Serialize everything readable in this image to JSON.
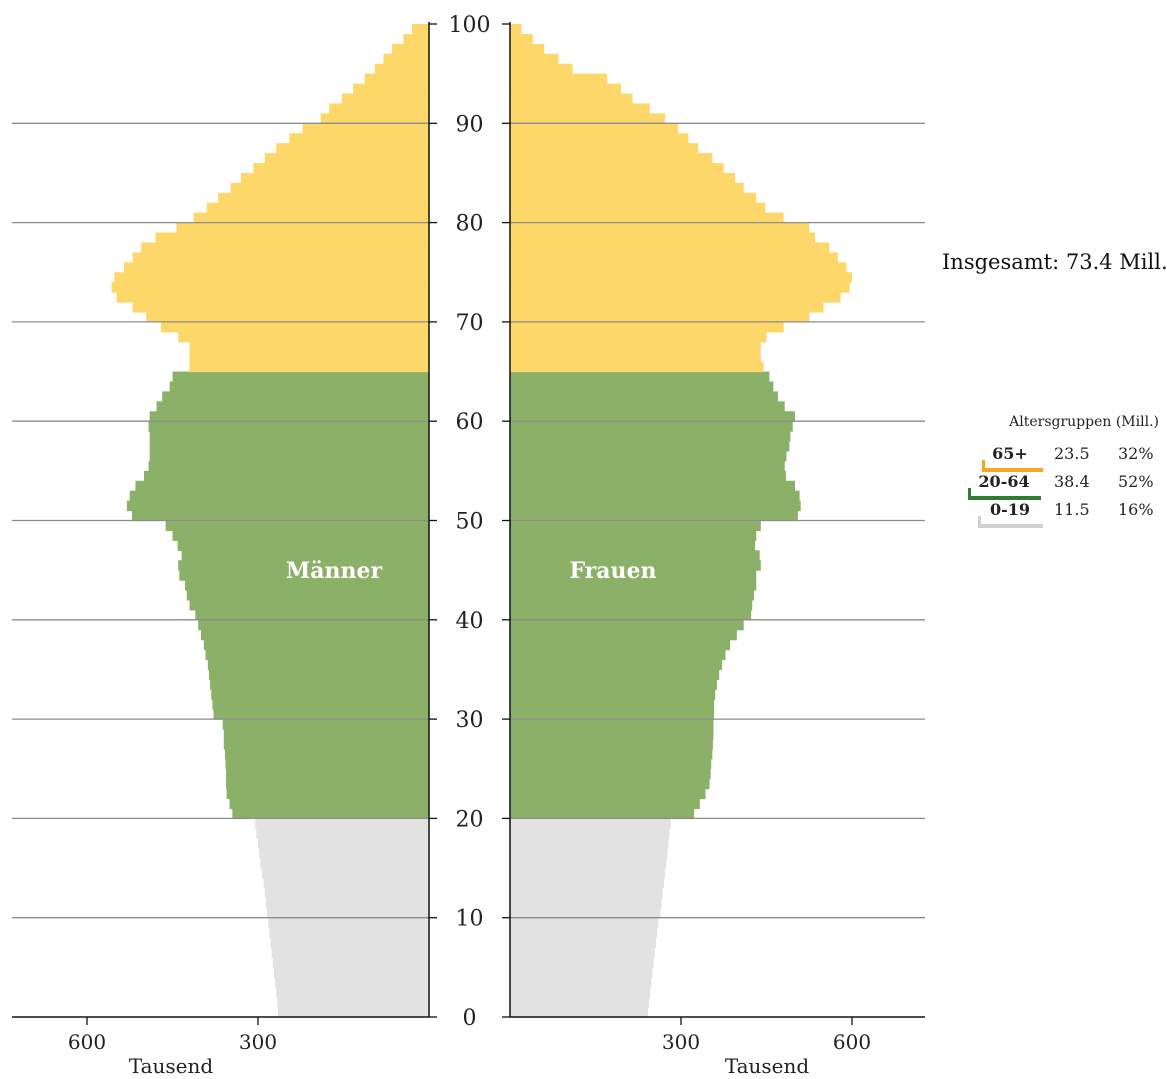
{
  "chart_data": {
    "type": "bar",
    "orientation": "horizontal-population-pyramid",
    "total_label": "Insgesamt: 73.4 Mill.",
    "center_labels": {
      "left": "Männer",
      "right": "Frauen"
    },
    "x_unit_label": "Tausend",
    "x_ticks_left": [
      "600",
      "300"
    ],
    "x_ticks_right": [
      "300",
      "600"
    ],
    "x_tick_values": [
      300,
      600
    ],
    "x_max": 730,
    "y_ticks": [
      "0",
      "10",
      "20",
      "30",
      "40",
      "50",
      "60",
      "70",
      "80",
      "90",
      "100"
    ],
    "y_range": [
      0,
      100
    ],
    "grid": true,
    "legend_position": "right",
    "colors": {
      "65+": "#fdd769",
      "20-64": "#8bb068",
      "0-19": "#e2e2e2"
    },
    "legend_colors": {
      "65+": "#f5a623",
      "20-64": "#2e7d32",
      "0-19": "#cfcfcf"
    },
    "legend": {
      "title": "Altersgruppen (Mill.)",
      "groups": [
        {
          "label": "65+",
          "mill": "23.5",
          "pct": "32%"
        },
        {
          "label": "20-64",
          "mill": "38.4",
          "pct": "52%"
        },
        {
          "label": "0-19",
          "mill": "11.5",
          "pct": "16%"
        }
      ]
    },
    "ages": [
      0,
      1,
      2,
      3,
      4,
      5,
      6,
      7,
      8,
      9,
      10,
      11,
      12,
      13,
      14,
      15,
      16,
      17,
      18,
      19,
      20,
      21,
      22,
      23,
      24,
      25,
      26,
      27,
      28,
      29,
      30,
      31,
      32,
      33,
      34,
      35,
      36,
      37,
      38,
      39,
      40,
      41,
      42,
      43,
      44,
      45,
      46,
      47,
      48,
      49,
      50,
      51,
      52,
      53,
      54,
      55,
      56,
      57,
      58,
      59,
      60,
      61,
      62,
      63,
      64,
      65,
      66,
      67,
      68,
      69,
      70,
      71,
      72,
      73,
      74,
      75,
      76,
      77,
      78,
      79,
      80,
      81,
      82,
      83,
      84,
      85,
      86,
      87,
      88,
      89,
      90,
      91,
      92,
      93,
      94,
      95,
      96,
      97,
      98,
      99
    ],
    "series": [
      {
        "name": "Männer",
        "values": [
          265,
          266,
          268,
          270,
          272,
          274,
          276,
          278,
          280,
          282,
          284,
          286,
          288,
          290,
          293,
          296,
          298,
          300,
          303,
          305,
          345,
          350,
          355,
          356,
          356,
          357,
          358,
          360,
          360,
          362,
          378,
          380,
          382,
          384,
          386,
          388,
          392,
          395,
          400,
          405,
          410,
          420,
          425,
          428,
          438,
          440,
          434,
          441,
          450,
          462,
          521,
          530,
          525,
          515,
          500,
          492,
          490,
          490,
          490,
          492,
          490,
          478,
          468,
          455,
          450,
          420,
          420,
          420,
          440,
          470,
          496,
          520,
          548,
          557,
          552,
          535,
          520,
          505,
          480,
          443,
          413,
          390,
          370,
          348,
          330,
          308,
          288,
          268,
          245,
          222,
          190,
          175,
          153,
          133,
          113,
          95,
          80,
          65,
          45,
          30
        ]
      },
      {
        "name": "Frauen",
        "values": [
          242,
          244,
          246,
          248,
          250,
          252,
          254,
          256,
          258,
          260,
          264,
          266,
          268,
          270,
          272,
          274,
          276,
          278,
          280,
          282,
          323,
          333,
          343,
          350,
          352,
          353,
          355,
          356,
          357,
          357,
          358,
          358,
          360,
          363,
          367,
          372,
          378,
          386,
          398,
          410,
          423,
          425,
          428,
          432,
          432,
          440,
          438,
          430,
          432,
          440,
          505,
          510,
          508,
          500,
          484,
          482,
          485,
          490,
          492,
          496,
          500,
          482,
          470,
          462,
          455,
          445,
          440,
          440,
          450,
          480,
          525,
          550,
          580,
          596,
          600,
          590,
          575,
          560,
          535,
          525,
          480,
          448,
          432,
          410,
          395,
          375,
          355,
          330,
          313,
          295,
          272,
          245,
          215,
          195,
          170,
          110,
          85,
          60,
          40,
          20
        ]
      }
    ]
  }
}
